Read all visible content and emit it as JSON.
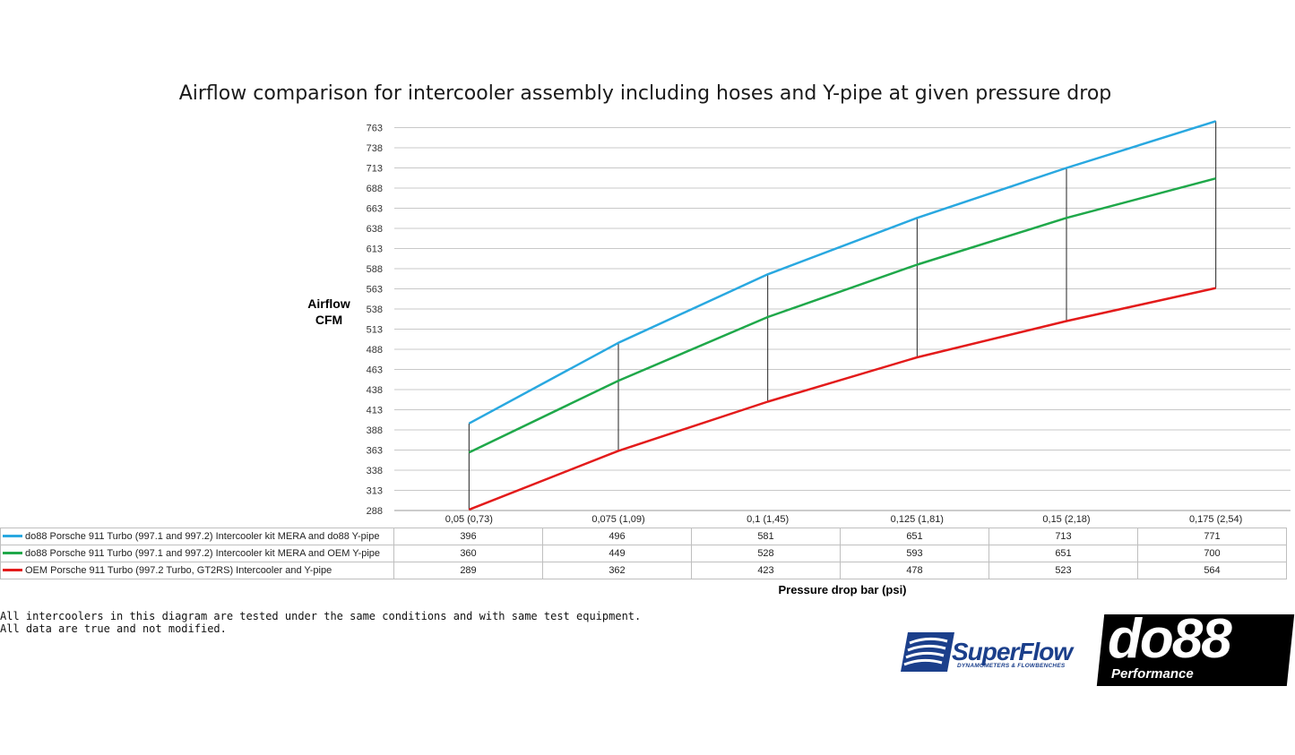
{
  "chart_data": {
    "type": "line",
    "title": "Airflow comparison for intercooler assembly including hoses and Y-pipe at given pressure drop",
    "ylabel": [
      "Airflow",
      "CFM"
    ],
    "xlabel": "Pressure drop bar (psi)",
    "categories": [
      "0,05 (0,73)",
      "0,075 (1,09)",
      "0,1 (1,45)",
      "0,125 (1,81)",
      "0,15 (2,18)",
      "0,175 (2,54)"
    ],
    "yticks": [
      288,
      313,
      338,
      363,
      388,
      413,
      438,
      463,
      488,
      513,
      538,
      563,
      588,
      613,
      638,
      663,
      688,
      713,
      738,
      763
    ],
    "ylim": [
      288,
      771
    ],
    "grid": true,
    "series": [
      {
        "name": "do88 Porsche 911 Turbo (997.1 and 997.2) Intercooler kit MERA and do88 Y-pipe",
        "color": "#29a8e0",
        "values": [
          396,
          496,
          581,
          651,
          713,
          771
        ]
      },
      {
        "name": "do88 Porsche 911 Turbo (997.1 and 997.2) Intercooler kit MERA and OEM Y-pipe",
        "color": "#1fa84a",
        "values": [
          360,
          449,
          528,
          593,
          651,
          700
        ]
      },
      {
        "name": "OEM Porsche 911 Turbo (997.2 Turbo,  GT2RS) Intercooler and Y-pipe",
        "color": "#e31b1b",
        "values": [
          289,
          362,
          423,
          478,
          523,
          564
        ]
      }
    ]
  },
  "footnote": {
    "line1": "All intercoolers in this diagram are tested under the same conditions and with same test equipment.",
    "line2": "All data are true and not modified."
  },
  "logos": {
    "superflow_name": "SuperFlow",
    "superflow_tagline": "DYNAMOMETERS & FLOWBENCHES",
    "do88_name": "do88",
    "do88_tagline": "Performance"
  }
}
